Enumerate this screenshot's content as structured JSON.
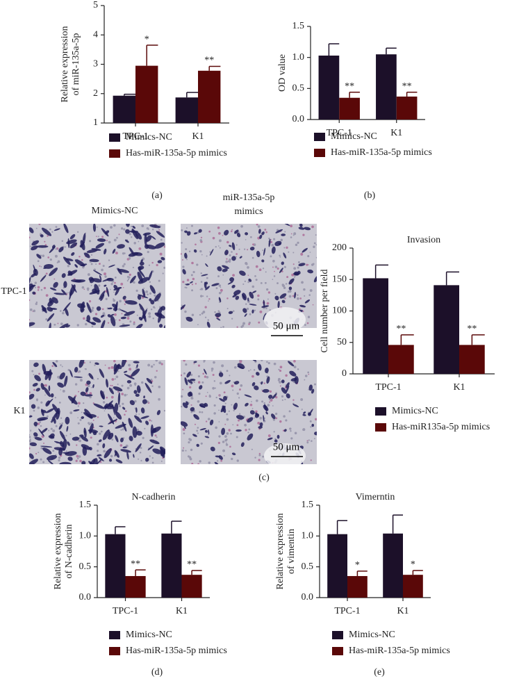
{
  "chart_data": [
    {
      "type": "bar",
      "panel_label": "(a)",
      "ylabel": [
        "Relative expression",
        "of miR-135a-5p"
      ],
      "categories": [
        "TPC-1",
        "K1"
      ],
      "ylim": [
        1,
        5
      ],
      "yticks": [
        1,
        2,
        3,
        4,
        5
      ],
      "series": [
        {
          "name": "Mimics-NC",
          "color": "#1c1029",
          "values": [
            1.93,
            1.87
          ],
          "errors": [
            0.05,
            0.17
          ]
        },
        {
          "name": "Has-miR-135a-5p mimics",
          "color": "#5a0808",
          "values": [
            2.95,
            2.78
          ],
          "errors": [
            0.7,
            0.15
          ],
          "annotations": [
            "*",
            "**"
          ]
        }
      ]
    },
    {
      "type": "bar",
      "panel_label": "(b)",
      "ylabel": [
        "OD value"
      ],
      "categories": [
        "TPC-1",
        "K1"
      ],
      "ylim": [
        0,
        1.5
      ],
      "yticks": [
        {
          "value": 0,
          "label": "0.0"
        },
        {
          "value": 0.5,
          "label": "0.5"
        },
        {
          "value": 1,
          "label": "1.0"
        },
        {
          "value": 1.5,
          "label": "1.5"
        }
      ],
      "series": [
        {
          "name": "Mimics-NC",
          "color": "#1c1029",
          "values": [
            1.03,
            1.05
          ],
          "errors": [
            0.19,
            0.1
          ]
        },
        {
          "name": "Has-miR-135a-5p mimics",
          "color": "#5a0808",
          "values": [
            0.35,
            0.37
          ],
          "errors": [
            0.09,
            0.07
          ],
          "annotations": [
            "**",
            "**"
          ]
        }
      ]
    },
    {
      "type": "bar",
      "title": "Invasion",
      "ylabel": [
        "Cell number per field"
      ],
      "categories": [
        "TPC-1",
        "K1"
      ],
      "ylim": [
        0,
        200
      ],
      "yticks": [
        0,
        50,
        100,
        150,
        200
      ],
      "series": [
        {
          "name": "Mimics-NC",
          "color": "#1c1029",
          "values": [
            152,
            141
          ],
          "errors": [
            21,
            21
          ]
        },
        {
          "name": "Has-miR135a-5p mimics",
          "color": "#5a0808",
          "values": [
            46,
            46
          ],
          "errors": [
            16,
            16
          ],
          "annotations": [
            "**",
            "**"
          ]
        }
      ]
    },
    {
      "type": "bar",
      "panel_label": "(d)",
      "title": "N-cadherin",
      "ylabel": [
        "Relative expression",
        "of N-cadherin"
      ],
      "categories": [
        "TPC-1",
        "K1"
      ],
      "ylim": [
        0,
        1.5
      ],
      "yticks": [
        {
          "value": 0,
          "label": "0.0"
        },
        {
          "value": 0.5,
          "label": "0.5"
        },
        {
          "value": 1,
          "label": "1.0"
        },
        {
          "value": 1.5,
          "label": "1.5"
        }
      ],
      "series": [
        {
          "name": "Mimics-NC",
          "color": "#1c1029",
          "values": [
            1.03,
            1.04
          ],
          "errors": [
            0.12,
            0.2
          ]
        },
        {
          "name": "Has-miR-135a-5p mimics",
          "color": "#5a0808",
          "values": [
            0.35,
            0.37
          ],
          "errors": [
            0.1,
            0.07
          ],
          "annotations": [
            "**",
            "**"
          ]
        }
      ]
    },
    {
      "type": "bar",
      "panel_label": "(e)",
      "title": "Vimerntin",
      "ylabel": [
        "Relative expression",
        "of vimentin"
      ],
      "categories": [
        "TPC-1",
        "K1"
      ],
      "ylim": [
        0,
        1.5
      ],
      "yticks": [
        {
          "value": 0,
          "label": "0.0"
        },
        {
          "value": 0.5,
          "label": "0.5"
        },
        {
          "value": 1,
          "label": "1.0"
        },
        {
          "value": 1.5,
          "label": "1.5"
        }
      ],
      "series": [
        {
          "name": "Mimics-NC",
          "color": "#1c1029",
          "values": [
            1.03,
            1.04
          ],
          "errors": [
            0.22,
            0.3
          ]
        },
        {
          "name": "Has-miR-135a-5p mimics",
          "color": "#5a0808",
          "values": [
            0.35,
            0.37
          ],
          "errors": [
            0.08,
            0.07
          ],
          "annotations": [
            "*",
            "*"
          ]
        }
      ]
    }
  ],
  "images": {
    "panel_label": "(c)",
    "column_labels": [
      [
        "Mimics-NC"
      ],
      [
        "miR-135a-5p",
        "mimics"
      ]
    ],
    "row_labels": [
      "TPC-1",
      "K1"
    ],
    "scale_bars": [
      "50 μm",
      "50 μm"
    ]
  }
}
